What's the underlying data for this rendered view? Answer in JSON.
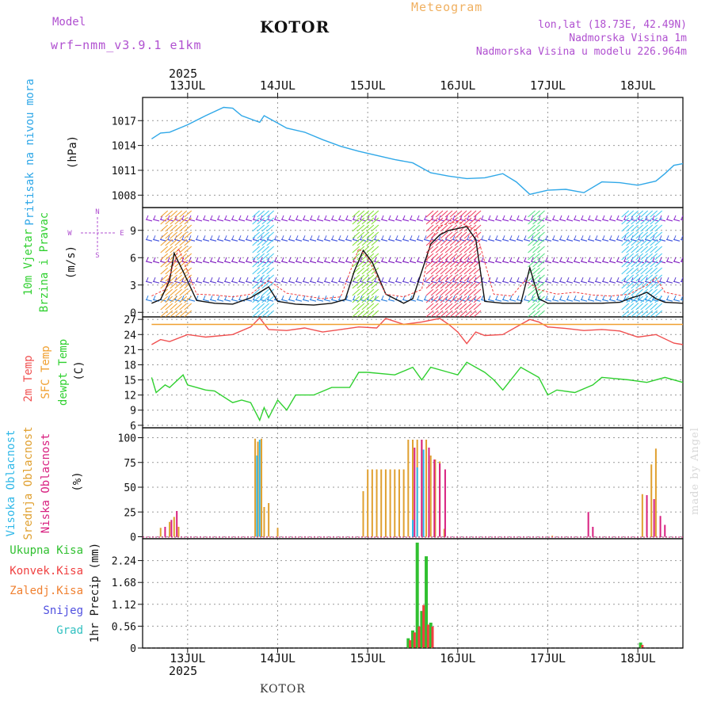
{
  "header": {
    "title": "KOTOR",
    "model_label": "Model",
    "model_value": "wrf−nmm_v3.9.1  e1km",
    "meteogram_label": "Meteogram",
    "lonlat": "lon,lat (18.73E, 42.49N)",
    "altitude": "Nadmorska Visina 1m",
    "model_altitude": "Nadmorska Visina u modelu 226.964m"
  },
  "footer": {
    "station": "KOTOR",
    "credit": "made by Angel"
  },
  "colors": {
    "pressure": "#30a8e8",
    "temp2m": "#f05050",
    "sfc_temp": "#f0a030",
    "dewpoint": "#30d030",
    "high_cloud": "#30b8e8",
    "mid_cloud": "#e0a030",
    "low_cloud": "#d82080",
    "total_precip": "#30c030",
    "conv_precip": "#f04040",
    "frozen_precip": "#f08030",
    "snow": "#5050e0",
    "hail": "#30c0c0"
  },
  "chart_data": [
    {
      "panel": "pressure",
      "type": "line",
      "year_label": "2025",
      "x_tick_labels": [
        "13JUL",
        "14JUL",
        "15JUL",
        "16JUL",
        "17JUL",
        "18JUL"
      ],
      "y_label_name": "Pritisak na nivou mora",
      "y_unit": "(hPa)",
      "ylim": [
        1006.5,
        1019.8
      ],
      "y_ticks": [
        1008,
        1011,
        1014,
        1017
      ],
      "grid": true,
      "x": [
        12.6,
        12.7,
        12.8,
        13.0,
        13.2,
        13.4,
        13.5,
        13.6,
        13.8,
        13.85,
        13.95,
        14.1,
        14.3,
        14.5,
        14.7,
        14.9,
        15.1,
        15.3,
        15.5,
        15.7,
        15.9,
        16.1,
        16.3,
        16.5,
        16.65,
        16.8,
        17.0,
        17.2,
        17.4,
        17.6,
        17.8,
        18.0,
        18.2,
        18.3,
        18.4,
        18.5
      ],
      "values": [
        1014.8,
        1015.5,
        1015.6,
        1016.5,
        1017.6,
        1018.6,
        1018.5,
        1017.6,
        1016.8,
        1017.6,
        1017.0,
        1016.1,
        1015.6,
        1014.7,
        1013.9,
        1013.3,
        1012.8,
        1012.3,
        1011.9,
        1010.7,
        1010.3,
        1010.0,
        1010.1,
        1010.6,
        1009.6,
        1008.1,
        1008.6,
        1008.7,
        1008.3,
        1009.6,
        1009.5,
        1009.2,
        1009.7,
        1010.6,
        1011.6,
        1011.8
      ]
    },
    {
      "panel": "wind",
      "type": "line",
      "y_label_name": "10m Vjetar",
      "y_label_name2": "Brzina i Pravac",
      "y_unit": "(m/s)",
      "compass_labels": [
        "N",
        "W",
        "E",
        "S"
      ],
      "ylim": [
        -0.5,
        11.5
      ],
      "y_ticks": [
        0,
        3,
        6,
        9
      ],
      "grid": true,
      "series": [
        {
          "name": "",
          "x": [
            12.6,
            12.7,
            12.8,
            12.85,
            12.95,
            13.1,
            13.3,
            13.5,
            13.7,
            13.9,
            14.0,
            14.2,
            14.4,
            14.6,
            14.75,
            14.85,
            14.95,
            15.05,
            15.2,
            15.4,
            15.5,
            15.6,
            15.7,
            15.8,
            15.9,
            16.0,
            16.1,
            16.2,
            16.3,
            16.5,
            16.7,
            16.8,
            16.9,
            17.0,
            17.2,
            17.4,
            17.6,
            17.8,
            17.9,
            18.0,
            18.1,
            18.2,
            18.3,
            18.5
          ],
          "values": [
            1.0,
            1.4,
            3.5,
            6.5,
            4.5,
            1.3,
            1.0,
            0.9,
            1.6,
            2.8,
            1.2,
            0.9,
            0.8,
            1.0,
            1.4,
            4.5,
            6.8,
            5.5,
            2.0,
            1.0,
            1.5,
            4.5,
            7.5,
            8.5,
            9.0,
            9.2,
            9.4,
            8.0,
            1.2,
            1.0,
            1.0,
            4.9,
            1.5,
            1.0,
            1.0,
            1.0,
            1.0,
            1.1,
            1.5,
            1.8,
            2.2,
            1.5,
            1.1,
            1.0
          ]
        },
        {
          "name": "",
          "x": [
            12.6,
            12.75,
            12.9,
            13.1,
            13.3,
            13.5,
            13.7,
            13.9,
            14.1,
            14.3,
            14.5,
            14.7,
            14.9,
            15.0,
            15.2,
            15.4,
            15.6,
            15.7,
            15.8,
            16.0,
            16.2,
            16.4,
            16.6,
            16.75,
            16.9,
            17.1,
            17.3,
            17.5,
            17.7,
            17.9,
            18.1,
            18.2,
            18.3,
            18.5
          ],
          "values": [
            1.8,
            2.5,
            7.0,
            2.0,
            1.9,
            1.7,
            2.0,
            3.5,
            2.1,
            1.8,
            1.5,
            1.7,
            7.0,
            6.0,
            2.0,
            1.7,
            2.5,
            8.0,
            9.5,
            10.0,
            9.0,
            2.0,
            1.8,
            3.5,
            2.5,
            2.0,
            2.2,
            1.9,
            1.8,
            2.0,
            3.0,
            3.8,
            2.2,
            1.8
          ]
        }
      ]
    },
    {
      "panel": "temperature",
      "type": "line",
      "y_label_names": [
        "2m Temp",
        "SFC Temp",
        "dewpt Temp"
      ],
      "y_unit": "(C)",
      "ylim": [
        5.5,
        27.5
      ],
      "y_ticks": [
        6,
        9,
        12,
        15,
        18,
        21,
        24,
        27
      ],
      "grid": true,
      "series": [
        {
          "name": "2m Temp",
          "x": [
            12.6,
            12.7,
            12.8,
            13.0,
            13.2,
            13.5,
            13.7,
            13.8,
            13.9,
            14.1,
            14.3,
            14.5,
            14.7,
            14.9,
            15.1,
            15.2,
            15.4,
            15.6,
            15.8,
            15.9,
            16.0,
            16.1,
            16.2,
            16.3,
            16.5,
            16.7,
            16.8,
            16.9,
            17.0,
            17.2,
            17.4,
            17.6,
            17.8,
            18.0,
            18.2,
            18.4,
            18.5
          ],
          "values": [
            22.0,
            23.0,
            22.6,
            24.0,
            23.5,
            24.0,
            25.5,
            27.3,
            25.0,
            24.8,
            25.3,
            24.5,
            25.0,
            25.5,
            25.3,
            27.2,
            26.0,
            26.5,
            27.2,
            26.0,
            24.5,
            22.2,
            24.5,
            23.8,
            24.0,
            26.0,
            27.0,
            26.5,
            25.5,
            25.2,
            24.8,
            25.0,
            24.7,
            23.5,
            24.0,
            22.3,
            22.0
          ]
        },
        {
          "name": "SFC Temp",
          "x": [
            12.6,
            18.5
          ],
          "values": [
            26.0,
            26.0
          ]
        },
        {
          "name": "dewpt Temp",
          "x": [
            12.6,
            12.65,
            12.75,
            12.8,
            12.95,
            13.0,
            13.2,
            13.3,
            13.5,
            13.6,
            13.7,
            13.8,
            13.85,
            13.9,
            14.0,
            14.1,
            14.2,
            14.4,
            14.6,
            14.8,
            14.9,
            15.0,
            15.3,
            15.5,
            15.6,
            15.7,
            15.9,
            16.0,
            16.1,
            16.3,
            16.4,
            16.5,
            16.7,
            16.9,
            17.0,
            17.1,
            17.3,
            17.5,
            17.6,
            17.9,
            18.1,
            18.3,
            18.5
          ],
          "values": [
            15.5,
            12.5,
            14.0,
            13.5,
            16.0,
            14.0,
            13.0,
            12.8,
            10.5,
            11.0,
            10.5,
            7.0,
            9.5,
            7.5,
            11.0,
            9.0,
            12.0,
            12.0,
            13.5,
            13.5,
            16.5,
            16.5,
            16.0,
            17.5,
            15.0,
            17.5,
            16.5,
            16.0,
            18.5,
            16.5,
            15.0,
            13.0,
            17.5,
            15.5,
            12.0,
            13.0,
            12.5,
            14.0,
            15.5,
            15.0,
            14.5,
            15.5,
            14.5
          ]
        }
      ]
    },
    {
      "panel": "clouds",
      "type": "bar",
      "y_label_names": [
        "Visoka Oblacnost",
        "Srednja Oblacnost",
        "Niska Oblacnost"
      ],
      "y_unit": "(%)",
      "ylim": [
        -2,
        110
      ],
      "y_ticks": [
        0,
        25,
        50,
        75,
        100
      ],
      "grid": true,
      "series": [
        {
          "name": "Srednja Oblacnost",
          "x": [
            12.7,
            12.8,
            12.85,
            12.9,
            13.75,
            13.78,
            13.82,
            13.85,
            13.9,
            14.0,
            14.95,
            15.0,
            15.05,
            15.1,
            15.15,
            15.2,
            15.25,
            15.3,
            15.35,
            15.4,
            15.45,
            15.5,
            15.55,
            15.6,
            15.65,
            15.7,
            15.75,
            15.8,
            15.85,
            17.05,
            18.05,
            18.1,
            18.15,
            18.2
          ],
          "values": [
            9,
            15,
            20,
            10,
            99,
            96,
            99,
            30,
            34,
            9,
            46,
            68,
            68,
            68,
            68,
            68,
            68,
            68,
            68,
            68,
            98,
            98,
            98,
            98,
            98,
            82,
            78,
            76,
            8,
            1,
            43,
            38,
            73,
            89
          ]
        },
        {
          "name": "Niska Oblacnost",
          "x": [
            12.75,
            12.82,
            12.88,
            15.52,
            15.6,
            15.68,
            15.74,
            15.8,
            15.86,
            17.45,
            17.5,
            18.1,
            18.18,
            18.25,
            18.3
          ],
          "values": [
            10,
            17,
            26,
            90,
            98,
            90,
            78,
            74,
            68,
            25,
            10,
            42,
            38,
            21,
            12
          ]
        },
        {
          "name": "Visoka Oblacnost",
          "x": [
            13.77,
            13.8,
            15.5,
            15.55,
            15.62
          ],
          "values": [
            82,
            98,
            17,
            70,
            88
          ]
        }
      ]
    },
    {
      "panel": "precipitation",
      "type": "bar",
      "x_tick_labels": [
        "13JUL",
        "14JUL",
        "15JUL",
        "16JUL",
        "17JUL",
        "18JUL"
      ],
      "year_label": "2025",
      "y_label_names": [
        "Ukupna Kisa",
        "Konvek.Kisa",
        "Zaledj.Kisa",
        "Snijeg",
        "Grad"
      ],
      "y_unit": "1hr Precip (mm)",
      "ylim": [
        0,
        2.8
      ],
      "y_ticks": [
        0,
        0.56,
        1.12,
        1.68,
        2.24
      ],
      "y_tick_labels": [
        "0",
        "0.56",
        "1.12",
        "1.68",
        "2.24"
      ],
      "grid": true,
      "series": [
        {
          "name": "Ukupna Kisa",
          "x": [
            15.45,
            15.5,
            15.55,
            15.6,
            15.65,
            15.7,
            18.03
          ],
          "values": [
            0.25,
            0.45,
            2.7,
            0.95,
            2.35,
            0.65,
            0.14
          ]
        },
        {
          "name": "Konvek.Kisa",
          "x": [
            15.47,
            15.52,
            15.57,
            15.62,
            15.67,
            15.72,
            18.05
          ],
          "values": [
            0.2,
            0.4,
            0.55,
            1.1,
            0.6,
            0.55,
            0.08
          ]
        }
      ]
    }
  ]
}
